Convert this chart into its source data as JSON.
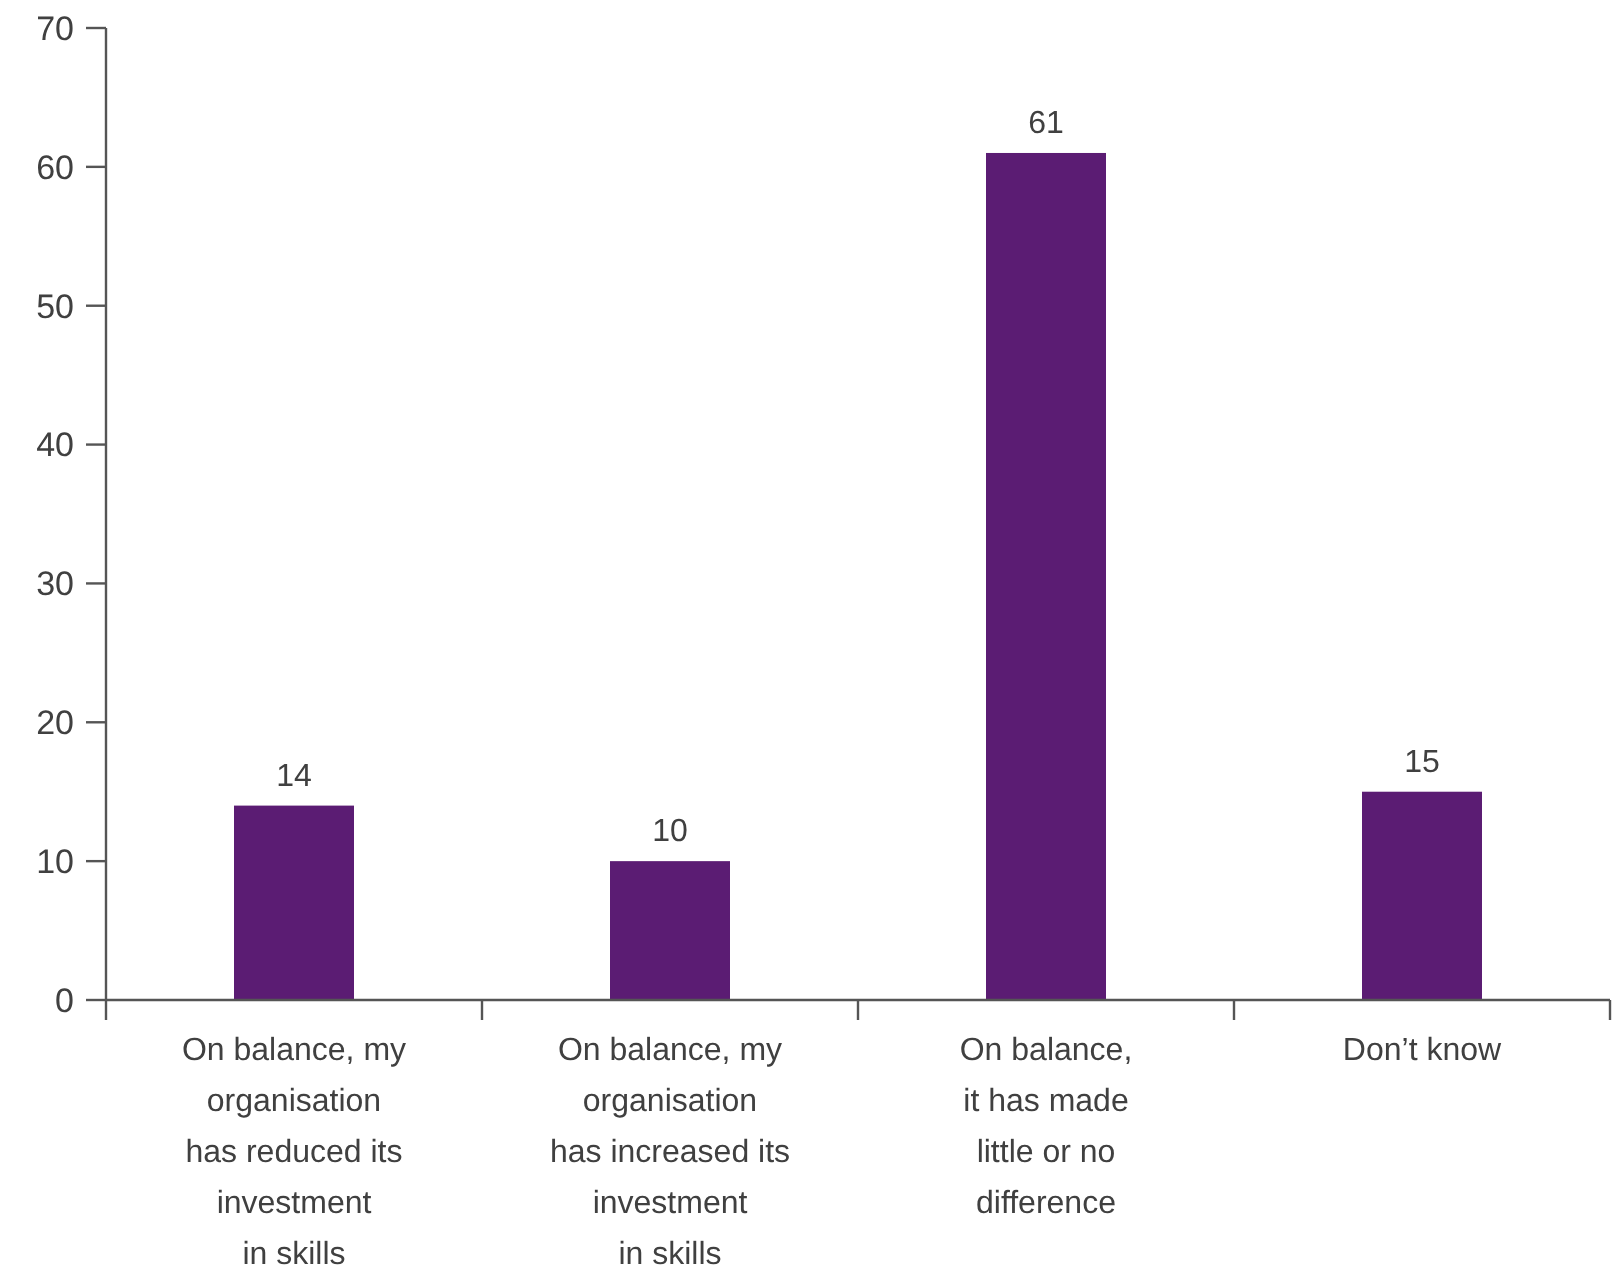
{
  "chart_data": {
    "type": "bar",
    "categories": [
      "On balance, my\norganisation\nhas reduced its\ninvestment\nin skills",
      "On balance, my\norganisation\nhas increased its\ninvestment\nin skills",
      "On balance,\nit has made\nlittle or no\ndifference",
      "Don’t know"
    ],
    "values": [
      14,
      10,
      61,
      15
    ],
    "color": "#5b1c73",
    "ylim": [
      0,
      70
    ],
    "yticks": [
      0,
      10,
      20,
      30,
      40,
      50,
      60,
      70
    ],
    "data_labels": true
  }
}
